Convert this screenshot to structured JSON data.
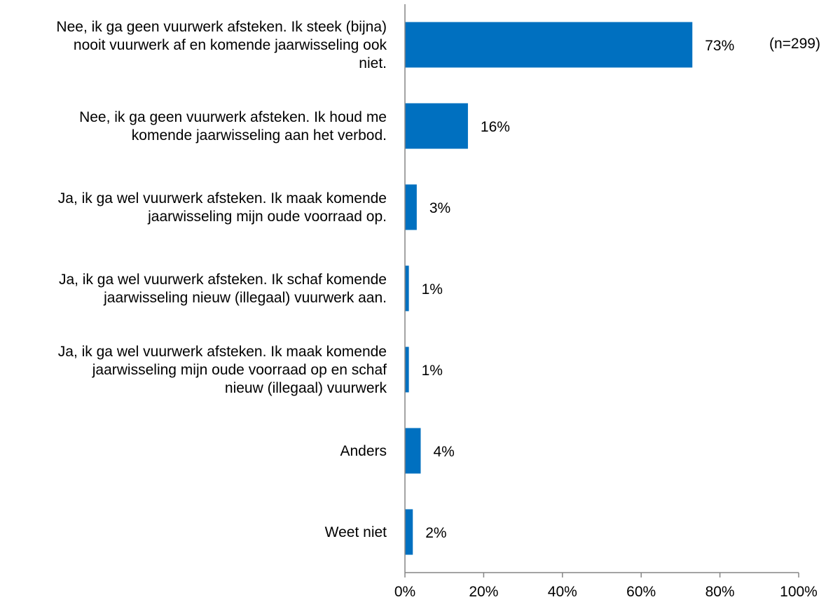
{
  "chart_data": {
    "type": "bar",
    "orientation": "horizontal",
    "categories": [
      [
        "Nee, ik ga geen vuurwerk afsteken. Ik steek (bijna)",
        "nooit vuurwerk af en komende jaarwisseling ook",
        "niet."
      ],
      [
        "Nee, ik ga geen vuurwerk afsteken. Ik houd me",
        "komende jaarwisseling aan het verbod."
      ],
      [
        "Ja, ik ga wel vuurwerk afsteken. Ik maak komende",
        "jaarwisseling mijn oude voorraad op."
      ],
      [
        "Ja, ik ga wel vuurwerk afsteken. Ik schaf komende",
        "jaarwisseling nieuw (illegaal) vuurwerk aan."
      ],
      [
        "Ja, ik ga wel vuurwerk afsteken. Ik maak komende",
        "jaarwisseling mijn oude voorraad op en schaf",
        "nieuw (illegaal) vuurwerk"
      ],
      [
        "Anders"
      ],
      [
        "Weet niet"
      ]
    ],
    "values": [
      73,
      16,
      3,
      1,
      1,
      4,
      2
    ],
    "value_labels": [
      "73%",
      "16%",
      "3%",
      "1%",
      "1%",
      "4%",
      "2%"
    ],
    "xlim": [
      0,
      100
    ],
    "x_ticks": [
      "0%",
      "20%",
      "40%",
      "60%",
      "80%",
      "100%"
    ],
    "note": "(n=299)",
    "bar_color": "#0070C0",
    "axis_color": "#868686",
    "grid": false
  }
}
